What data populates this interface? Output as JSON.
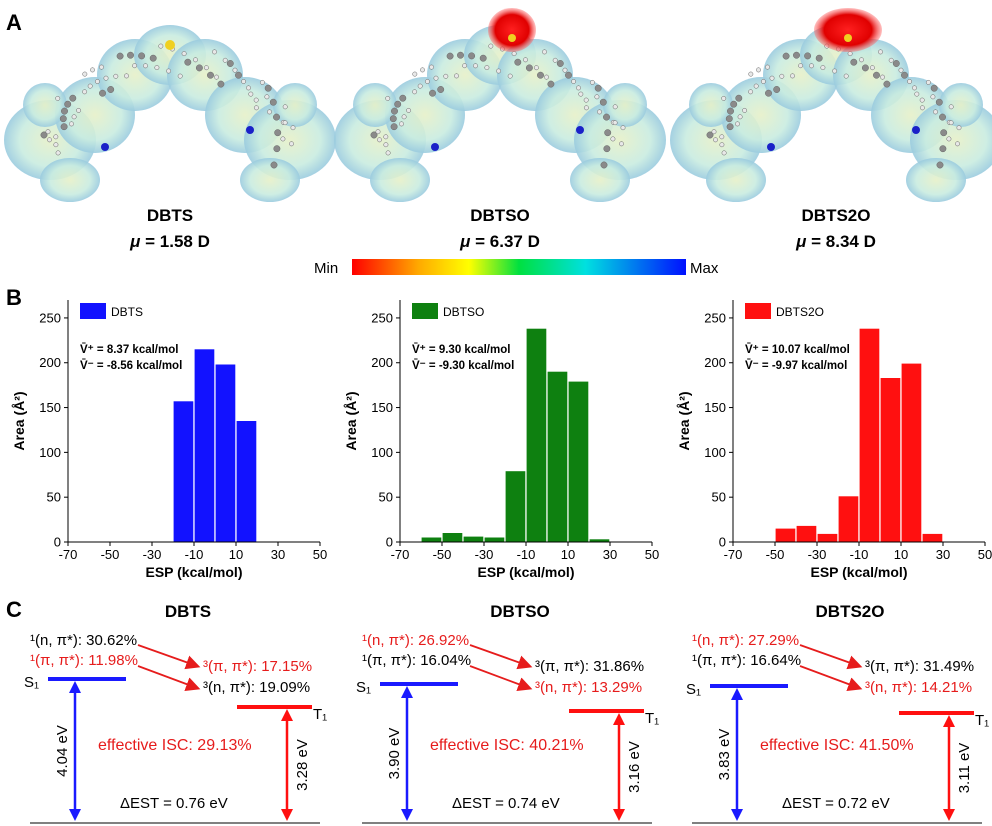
{
  "panel_labels": {
    "a": "A",
    "b": "B",
    "c": "C"
  },
  "colors": {
    "dbts": "#1212ff",
    "dbtso": "#0e8010",
    "dbts2o": "#ff1010",
    "red_text": "#e61c1c",
    "blue_line": "#1a1aff"
  },
  "panel_a": {
    "colorbar": {
      "min_label": "Min",
      "max_label": "Max"
    },
    "molecules": [
      {
        "name": "DBTS",
        "mu_symbol": "μ",
        "mu_value": "= 1.58 D"
      },
      {
        "name": "DBTSO",
        "mu_symbol": "μ",
        "mu_value": "= 6.37 D"
      },
      {
        "name": "DBTS2O",
        "mu_symbol": "μ",
        "mu_value": "= 8.34 D"
      }
    ]
  },
  "chart_data": [
    {
      "type": "bar",
      "legend": "DBTS",
      "color": "#1212ff",
      "x": [
        -15,
        -5,
        5,
        15
      ],
      "values": [
        157,
        215,
        198,
        135
      ],
      "xlabel": "ESP (kcal/mol)",
      "ylabel": "Area (Å²)",
      "xlim": [
        -70,
        50
      ],
      "ylim": [
        0,
        270
      ],
      "xticks": [
        "-70",
        "-50",
        "-30",
        "-10",
        "10",
        "30",
        "50"
      ],
      "yticks": [
        "0",
        "50",
        "100",
        "150",
        "200",
        "250"
      ],
      "annotations": [
        "V̄⁺ = 8.37 kcal/mol",
        "V̄⁻ = -8.56 kcal/mol"
      ]
    },
    {
      "type": "bar",
      "legend": "DBTSO",
      "color": "#0e8010",
      "x": [
        -55,
        -45,
        -35,
        -25,
        -15,
        -5,
        5,
        15,
        25
      ],
      "values": [
        5,
        10,
        6,
        5,
        79,
        238,
        190,
        179,
        3
      ],
      "xlabel": "ESP (kcal/mol)",
      "ylabel": "Area (Å²)",
      "xlim": [
        -70,
        50
      ],
      "ylim": [
        0,
        270
      ],
      "xticks": [
        "-70",
        "-50",
        "-30",
        "-10",
        "10",
        "30",
        "50"
      ],
      "yticks": [
        "0",
        "50",
        "100",
        "150",
        "200",
        "250"
      ],
      "annotations": [
        "V̄⁺ = 9.30 kcal/mol",
        "V̄⁻ = -9.30 kcal/mol"
      ]
    },
    {
      "type": "bar",
      "legend": "DBTS2O",
      "color": "#ff1010",
      "x": [
        -45,
        -35,
        -25,
        -15,
        -5,
        5,
        15,
        25
      ],
      "values": [
        15,
        18,
        9,
        51,
        238,
        183,
        199,
        9
      ],
      "xlabel": "ESP (kcal/mol)",
      "ylabel": "Area (Å²)",
      "xlim": [
        -70,
        50
      ],
      "ylim": [
        0,
        270
      ],
      "xticks": [
        "-70",
        "-50",
        "-30",
        "-10",
        "10",
        "30",
        "50"
      ],
      "yticks": [
        "0",
        "50",
        "100",
        "150",
        "200",
        "250"
      ],
      "annotations": [
        "V̄⁺ = 10.07 kcal/mol",
        "V̄⁻ = -9.97 kcal/mol"
      ]
    }
  ],
  "panel_c": [
    {
      "title": "DBTS",
      "s1_lines": [
        {
          "text": "¹(n, π*): 30.62%",
          "red": false
        },
        {
          "text": "¹(π, π*): 11.98%",
          "red": true
        }
      ],
      "t1_lines": [
        {
          "text": "³(π, π*): 17.15%",
          "red": true
        },
        {
          "text": "³(n, π*): 19.09%",
          "red": false
        }
      ],
      "s1_label": "S₁",
      "t1_label": "T₁",
      "s1_energy": "4.04 eV",
      "t1_energy": "3.28 eV",
      "isc": "effective ISC: 29.13%",
      "delta_est": "ΔEST = 0.76 eV"
    },
    {
      "title": "DBTSO",
      "s1_lines": [
        {
          "text": "¹(n, π*): 26.92%",
          "red": true
        },
        {
          "text": "¹(π, π*): 16.04%",
          "red": false
        }
      ],
      "t1_lines": [
        {
          "text": "³(π, π*): 31.86%",
          "red": false
        },
        {
          "text": "³(n, π*): 13.29%",
          "red": true
        }
      ],
      "s1_label": "S₁",
      "t1_label": "T₁",
      "s1_energy": "3.90 eV",
      "t1_energy": "3.16 eV",
      "isc": "effective ISC: 40.21%",
      "delta_est": "ΔEST = 0.74 eV"
    },
    {
      "title": "DBTS2O",
      "s1_lines": [
        {
          "text": "¹(n, π*): 27.29%",
          "red": true
        },
        {
          "text": "¹(π, π*): 16.64%",
          "red": false
        }
      ],
      "t1_lines": [
        {
          "text": "³(π, π*): 31.49%",
          "red": false
        },
        {
          "text": "³(n, π*): 14.21%",
          "red": true
        }
      ],
      "s1_label": "S₁",
      "t1_label": "T₁",
      "s1_energy": "3.83 eV",
      "t1_energy": "3.11 eV",
      "isc": "effective ISC: 41.50%",
      "delta_est": "ΔEST = 0.72 eV"
    }
  ]
}
